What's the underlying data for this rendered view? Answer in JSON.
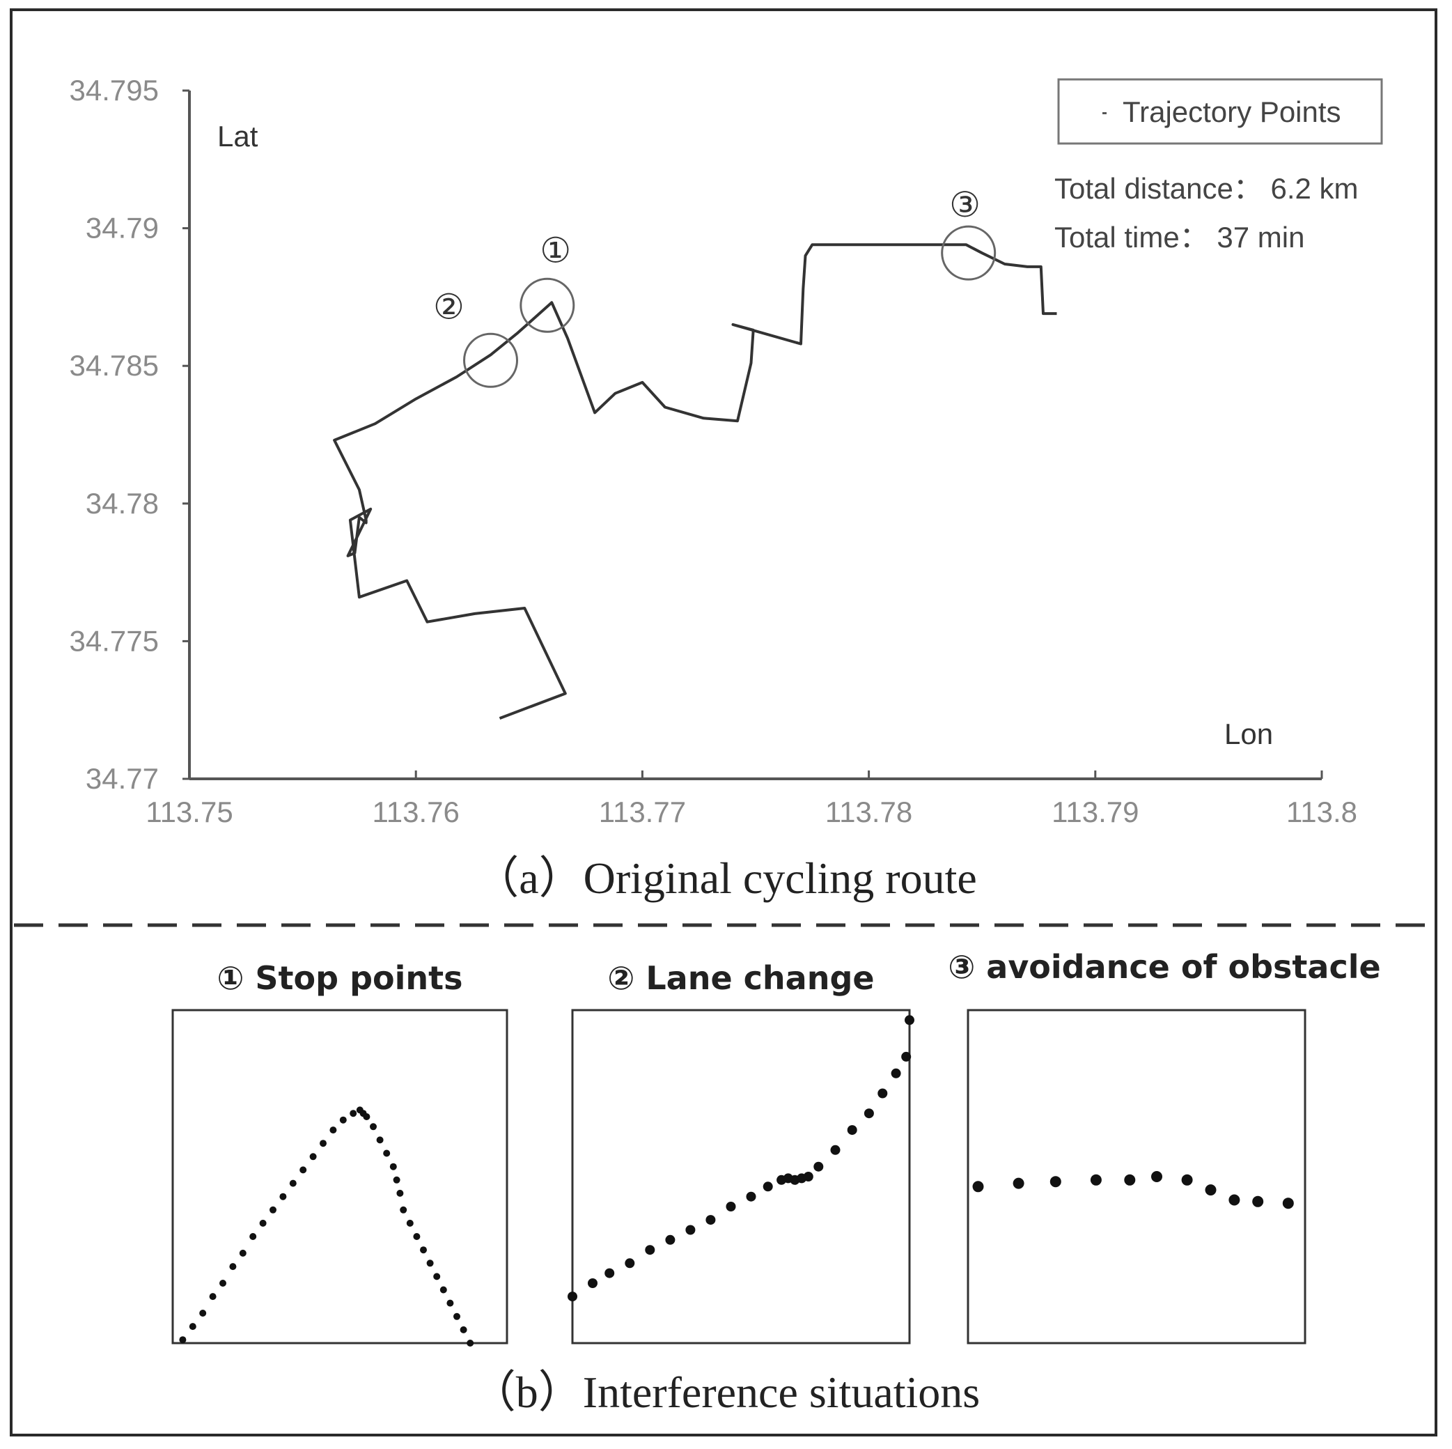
{
  "chart_data": [
    {
      "type": "line",
      "caption": "（a）Original cycling route",
      "xlabel": "Lon",
      "ylabel": "Lat",
      "xlim": [
        113.75,
        113.8
      ],
      "ylim": [
        34.77,
        34.795
      ],
      "x_ticks": [
        "113.75",
        "113.76",
        "113.77",
        "113.78",
        "113.79",
        "113.8"
      ],
      "y_ticks": [
        "34.795",
        "34.79",
        "34.785",
        "34.78",
        "34.775",
        "34.77"
      ],
      "legend": {
        "label": "Trajectory Points",
        "position": "top-right"
      },
      "info": {
        "distance": "Total distance：  6.2 km",
        "time": "Total time：   37 min"
      },
      "grid": false,
      "series": [
        {
          "points": [
            [
              113.7637,
              34.7722
            ],
            [
              113.7666,
              34.7731
            ],
            [
              113.7648,
              34.7762
            ],
            [
              113.7626,
              34.776
            ],
            [
              113.7605,
              34.7757
            ],
            [
              113.7596,
              34.7772
            ],
            [
              113.7575,
              34.7766
            ],
            [
              113.7571,
              34.7794
            ],
            [
              113.758,
              34.7798
            ],
            [
              113.757,
              34.7781
            ],
            [
              113.7573,
              34.7782
            ],
            [
              113.7575,
              34.7795
            ],
            [
              113.7578,
              34.7793
            ],
            [
              113.7578,
              34.7794
            ],
            [
              113.7575,
              34.7805
            ],
            [
              113.7564,
              34.7823
            ],
            [
              113.7582,
              34.7829
            ],
            [
              113.76,
              34.7838
            ],
            [
              113.7618,
              34.7846
            ],
            [
              113.7633,
              34.7854
            ],
            [
              113.7645,
              34.7862
            ],
            [
              113.766,
              34.7873
            ],
            [
              113.7667,
              34.786
            ],
            [
              113.7679,
              34.7833
            ],
            [
              113.7688,
              34.784
            ],
            [
              113.77,
              34.7844
            ],
            [
              113.771,
              34.7835
            ],
            [
              113.7727,
              34.7831
            ],
            [
              113.7742,
              34.783
            ],
            [
              113.7748,
              34.7851
            ],
            [
              113.7749,
              34.7863
            ],
            [
              113.774,
              34.7865
            ],
            [
              113.777,
              34.7858
            ],
            [
              113.7771,
              34.7878
            ],
            [
              113.7772,
              34.789
            ],
            [
              113.7775,
              34.7894
            ],
            [
              113.779,
              34.7894
            ],
            [
              113.78,
              34.7894
            ],
            [
              113.7815,
              34.7894
            ],
            [
              113.783,
              34.7894
            ],
            [
              113.7843,
              34.7894
            ],
            [
              113.785,
              34.7891
            ],
            [
              113.786,
              34.7887
            ],
            [
              113.787,
              34.7886
            ],
            [
              113.7876,
              34.7886
            ],
            [
              113.7877,
              34.7869
            ],
            [
              113.7883,
              34.7869
            ]
          ]
        }
      ],
      "markers": [
        {
          "label": "①",
          "lon": 113.7658,
          "lat": 34.7872
        },
        {
          "label": "②",
          "lon": 113.7633,
          "lat": 34.7852
        },
        {
          "label": "③",
          "lon": 113.7844,
          "lat": 34.7891
        }
      ]
    },
    {
      "type": "scatter",
      "caption": "（b）Interference situations",
      "panels": [
        {
          "title": "①  Stop points",
          "points": [
            [
              0.03,
              0.99
            ],
            [
              0.06,
              0.95
            ],
            [
              0.09,
              0.91
            ],
            [
              0.12,
              0.86
            ],
            [
              0.15,
              0.82
            ],
            [
              0.18,
              0.77
            ],
            [
              0.21,
              0.73
            ],
            [
              0.24,
              0.68
            ],
            [
              0.27,
              0.64
            ],
            [
              0.3,
              0.6
            ],
            [
              0.33,
              0.56
            ],
            [
              0.36,
              0.52
            ],
            [
              0.39,
              0.48
            ],
            [
              0.42,
              0.44
            ],
            [
              0.45,
              0.4
            ],
            [
              0.48,
              0.36
            ],
            [
              0.51,
              0.33
            ],
            [
              0.54,
              0.31
            ],
            [
              0.56,
              0.3
            ],
            [
              0.57,
              0.31
            ],
            [
              0.58,
              0.32
            ],
            [
              0.6,
              0.35
            ],
            [
              0.62,
              0.39
            ],
            [
              0.64,
              0.43
            ],
            [
              0.66,
              0.47
            ],
            [
              0.67,
              0.51
            ],
            [
              0.68,
              0.55
            ],
            [
              0.69,
              0.6
            ],
            [
              0.71,
              0.64
            ],
            [
              0.73,
              0.68
            ],
            [
              0.75,
              0.72
            ],
            [
              0.77,
              0.76
            ],
            [
              0.79,
              0.8
            ],
            [
              0.81,
              0.84
            ],
            [
              0.83,
              0.88
            ],
            [
              0.85,
              0.92
            ],
            [
              0.87,
              0.96
            ],
            [
              0.89,
              1.0
            ]
          ]
        },
        {
          "title": "②  Lane change",
          "points": [
            [
              0.0,
              0.86
            ],
            [
              0.06,
              0.82
            ],
            [
              0.11,
              0.79
            ],
            [
              0.17,
              0.76
            ],
            [
              0.23,
              0.72
            ],
            [
              0.29,
              0.69
            ],
            [
              0.35,
              0.66
            ],
            [
              0.41,
              0.63
            ],
            [
              0.47,
              0.59
            ],
            [
              0.53,
              0.56
            ],
            [
              0.58,
              0.53
            ],
            [
              0.62,
              0.51
            ],
            [
              0.64,
              0.505
            ],
            [
              0.66,
              0.51
            ],
            [
              0.68,
              0.505
            ],
            [
              0.7,
              0.5
            ],
            [
              0.73,
              0.47
            ],
            [
              0.78,
              0.42
            ],
            [
              0.83,
              0.36
            ],
            [
              0.88,
              0.31
            ],
            [
              0.92,
              0.25
            ],
            [
              0.96,
              0.19
            ],
            [
              0.99,
              0.14
            ],
            [
              1.0,
              0.03
            ]
          ]
        },
        {
          "title": "③  avoidance of obstacle",
          "points": [
            [
              0.03,
              0.53
            ],
            [
              0.15,
              0.52
            ],
            [
              0.26,
              0.515
            ],
            [
              0.38,
              0.51
            ],
            [
              0.48,
              0.51
            ],
            [
              0.56,
              0.5
            ],
            [
              0.65,
              0.51
            ],
            [
              0.72,
              0.54
            ],
            [
              0.79,
              0.57
            ],
            [
              0.86,
              0.575
            ],
            [
              0.95,
              0.58
            ]
          ]
        }
      ]
    }
  ]
}
